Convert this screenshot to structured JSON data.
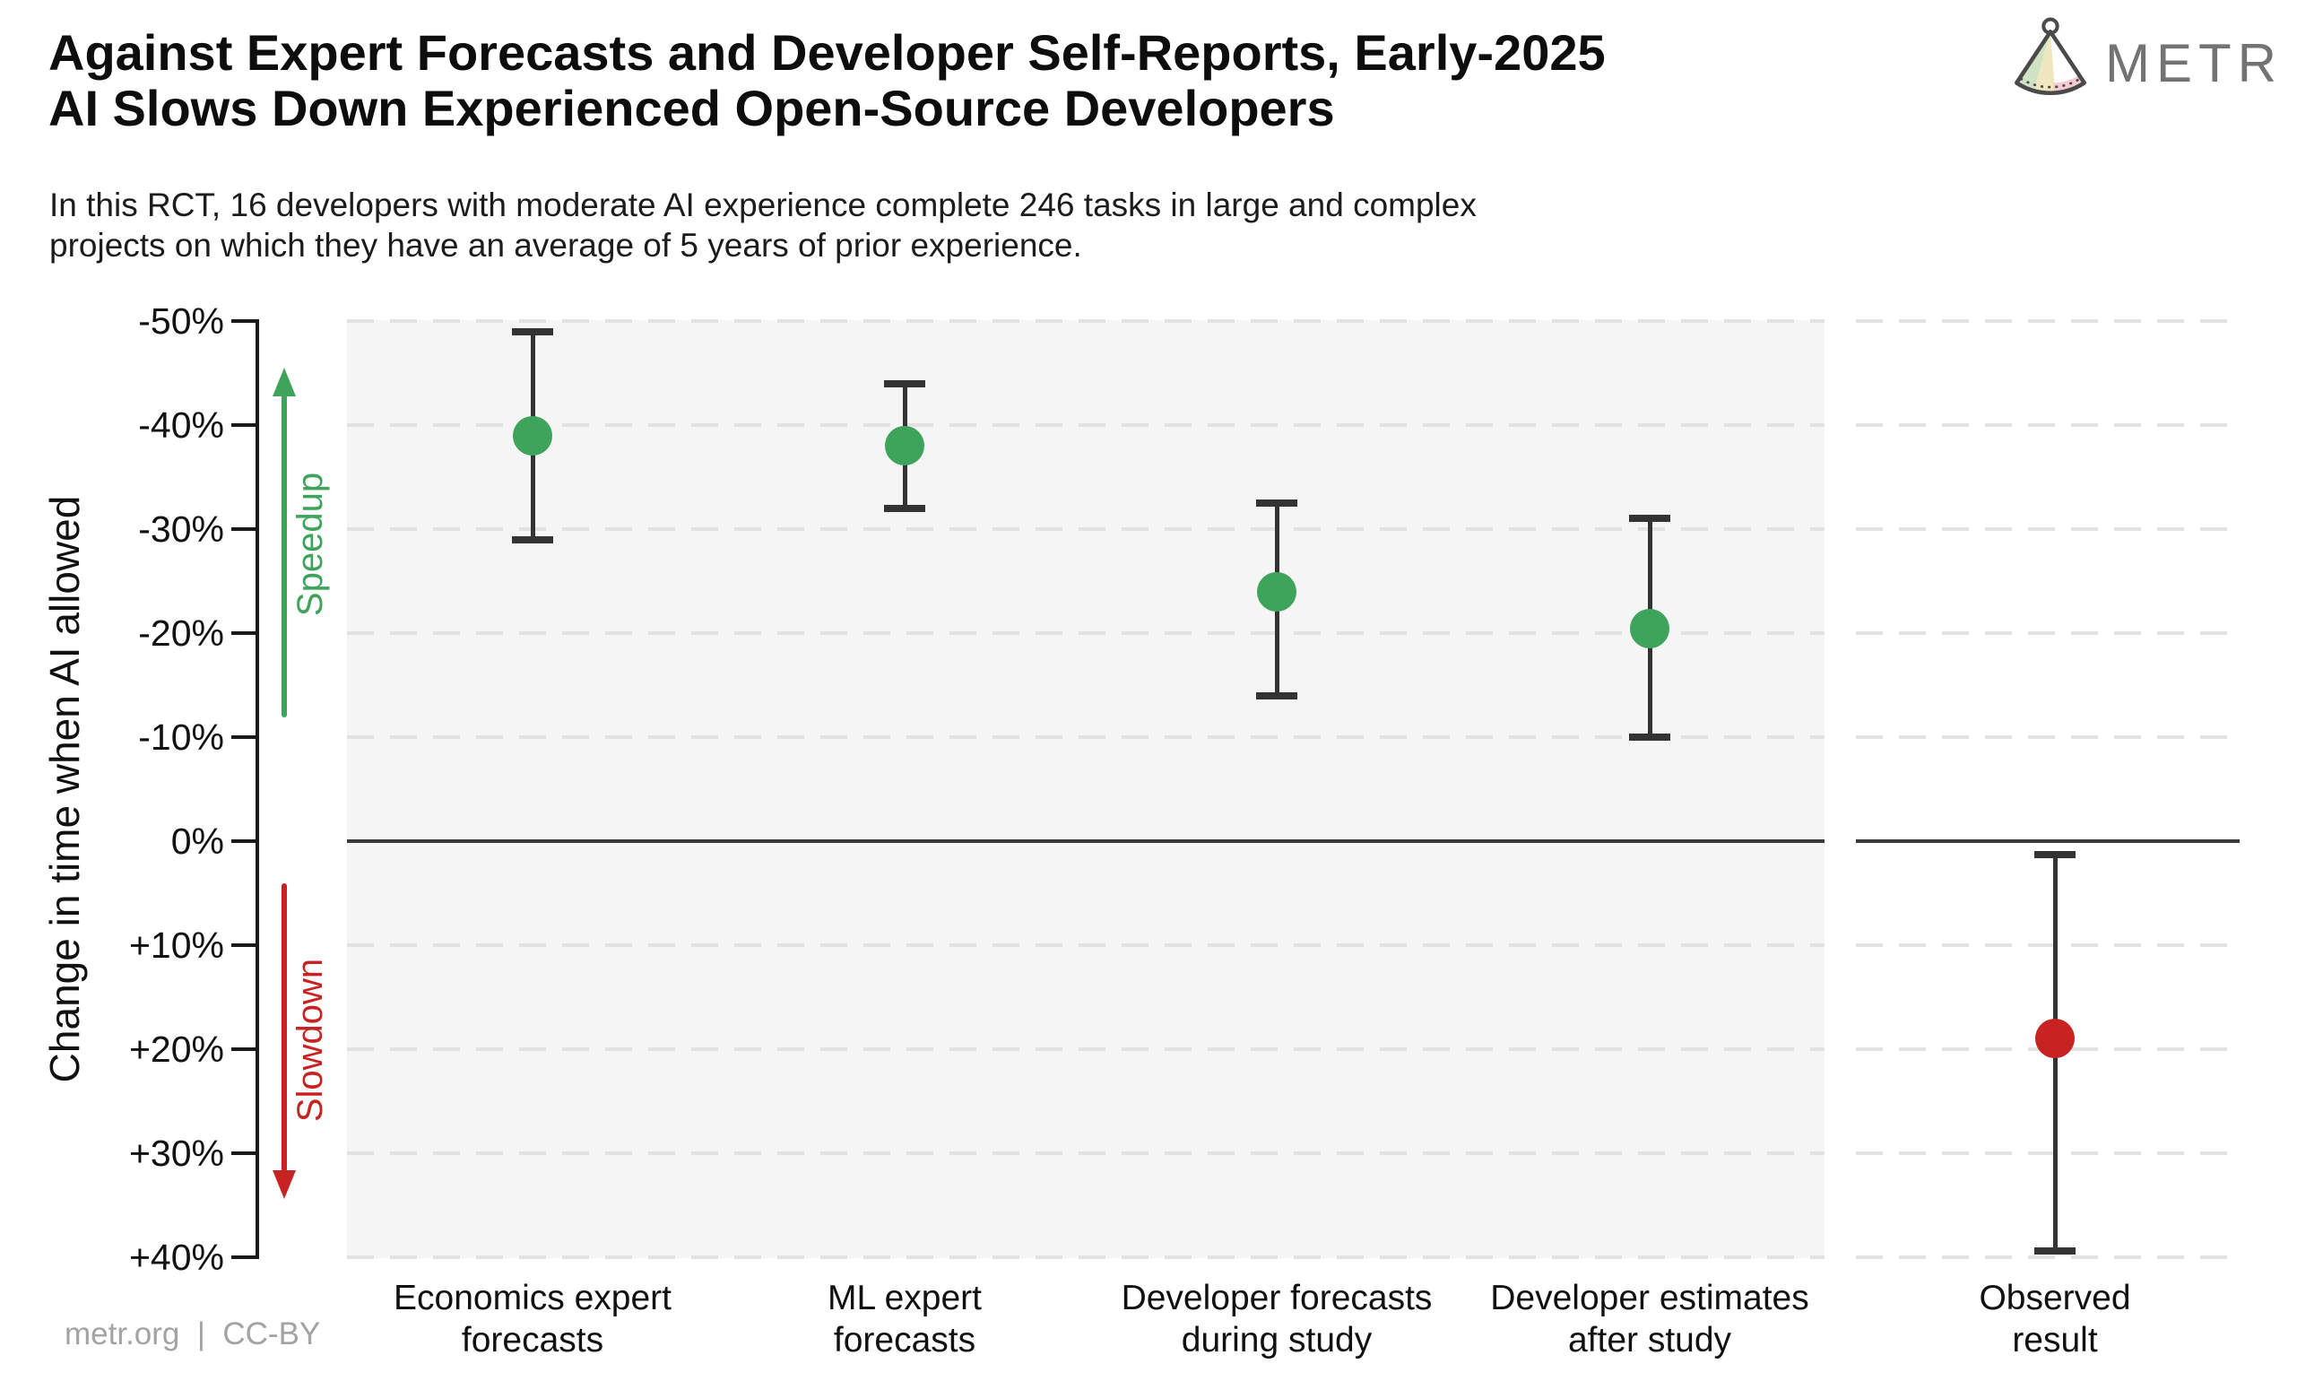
{
  "header": {
    "title_line1": "Against Expert Forecasts and Developer Self-Reports, Early-2025",
    "title_line2": "AI Slows Down Experienced Open-Source Developers",
    "subtitle_line1": "In this RCT, 16 developers with moderate AI experience complete 246 tasks in large and complex",
    "subtitle_line2": "projects on which they have an average of 5 years of prior experience.",
    "logo_text": "METR"
  },
  "footer": {
    "credit": "metr.org  |  CC-BY"
  },
  "colors": {
    "speedup_green": "#3ea45c",
    "slowdown_red": "#c82323",
    "errorbar_dark": "#333333",
    "grid_gray": "#e2e2e2",
    "panel_gray": "#f5f5f5",
    "logo_gray": "#737373",
    "muted_text": "#a3a3a3"
  },
  "chart_data": {
    "type": "scatter",
    "title": "Against Expert Forecasts and Developer Self-Reports, Early-2025 AI Slows Down Experienced Open-Source Developers",
    "subtitle": "In this RCT, 16 developers with moderate AI experience complete 246 tasks in large and complex projects on which they have an average of 5 years of prior experience.",
    "ylabel": "Change in time when AI allowed",
    "ylim_top_pct": -50,
    "ylim_bottom_pct": 40,
    "grid": "horizontal dashed gridlines every 10%, solid dark line at 0%",
    "legend_position": "none",
    "y_ticks": [
      {
        "value": -50,
        "label": "-50%"
      },
      {
        "value": -40,
        "label": "-40%"
      },
      {
        "value": -30,
        "label": "-30%"
      },
      {
        "value": -20,
        "label": "-20%"
      },
      {
        "value": -10,
        "label": "-10%"
      },
      {
        "value": 0,
        "label": "0%"
      },
      {
        "value": 10,
        "label": "+10%"
      },
      {
        "value": 20,
        "label": "+20%"
      },
      {
        "value": 30,
        "label": "+30%"
      },
      {
        "value": 40,
        "label": "+40%"
      }
    ],
    "annotations": {
      "speedup_label": "Speedup",
      "slowdown_label": "Slowdown"
    },
    "points": [
      {
        "category_line1": "Economics expert",
        "category_line2": "forecasts",
        "mean_pct": -39,
        "ci_low_pct": -49,
        "ci_high_pct": -29,
        "color": "#3ea45c",
        "panel": "main"
      },
      {
        "category_line1": "ML expert",
        "category_line2": "forecasts",
        "mean_pct": -38,
        "ci_low_pct": -44,
        "ci_high_pct": -32,
        "color": "#3ea45c",
        "panel": "main"
      },
      {
        "category_line1": "Developer forecasts",
        "category_line2": "during study",
        "mean_pct": -24,
        "ci_low_pct": -32.5,
        "ci_high_pct": -14,
        "color": "#3ea45c",
        "panel": "main"
      },
      {
        "category_line1": "Developer estimates",
        "category_line2": "after study",
        "mean_pct": -20.4,
        "ci_low_pct": -31,
        "ci_high_pct": -10,
        "color": "#3ea45c",
        "panel": "main"
      },
      {
        "category_line1": "Observed",
        "category_line2": "result",
        "mean_pct": 19,
        "ci_low_pct": 1.3,
        "ci_high_pct": 39.4,
        "color": "#c82323",
        "panel": "right"
      }
    ]
  }
}
